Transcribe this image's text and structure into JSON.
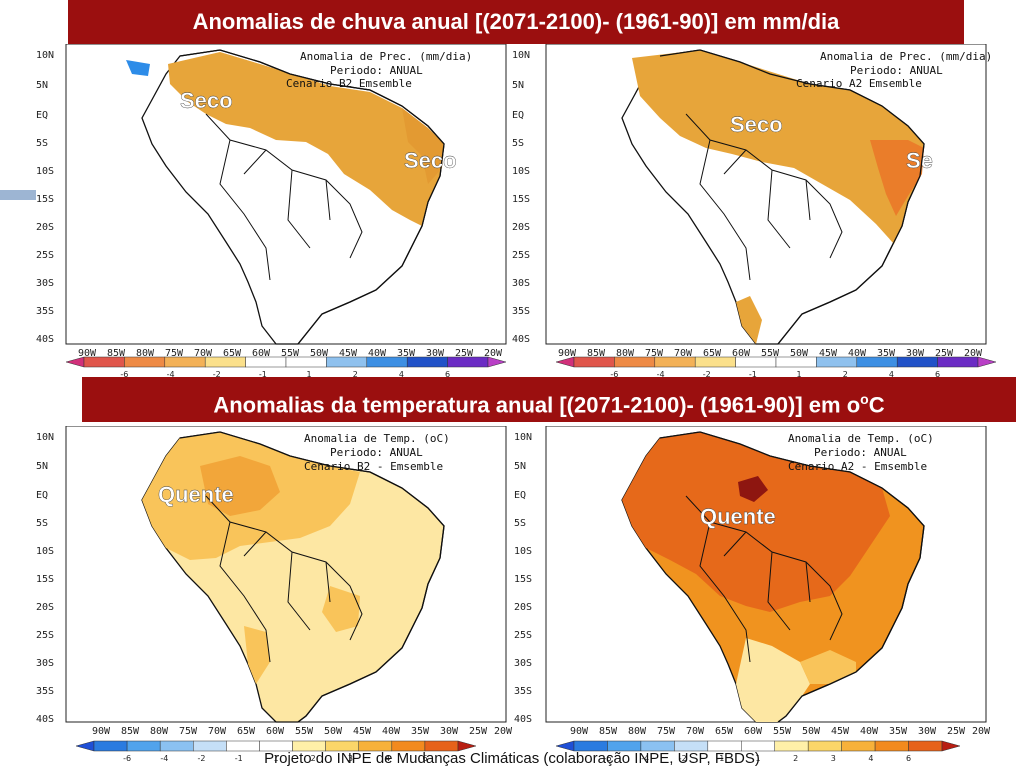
{
  "titles": {
    "precip": "Anomalias de chuva anual [(2071-2100)- (1961-90)] em mm/dia",
    "temp_main": "Anomalias da temperatura anual [(2071-2100)- (1961-90)] em o",
    "temp_unit": "C"
  },
  "axes": {
    "lat": [
      "10N",
      "5N",
      "EQ",
      "5S",
      "10S",
      "15S",
      "20S",
      "25S",
      "30S",
      "35S",
      "40S"
    ],
    "lon": [
      "90W",
      "85W",
      "80W",
      "75W",
      "70W",
      "65W",
      "60W",
      "55W",
      "50W",
      "45W",
      "40W",
      "35W",
      "30W",
      "25W",
      "20W"
    ]
  },
  "maps": {
    "precip_b2": {
      "header": [
        "Anomalia de Prec. (mm/dia)",
        "Periodo: ANUAL",
        "Cenario B2  Emsemble"
      ],
      "labels": [
        "Seco",
        "Seco"
      ]
    },
    "precip_a2": {
      "header": [
        "Anomalia de Prec. (mm/dia)",
        "Periodo: ANUAL",
        "Cenario A2  Emsemble"
      ],
      "labels": [
        "Seco",
        "Se"
      ]
    },
    "temp_b2": {
      "header": [
        "Anomalia de Temp. (oC)",
        "Periodo: ANUAL",
        "Cenario B2 - Emsemble"
      ],
      "labels": [
        "Quente"
      ]
    },
    "temp_a2": {
      "header": [
        "Anomalia de Temp. (oC)",
        "Periodo: ANUAL",
        "Cenario A2 - Emsemble"
      ],
      "labels": [
        "Quente"
      ]
    }
  },
  "colorbars": {
    "precip": {
      "ticks": [
        "-6",
        "-4",
        "-2",
        "-1",
        "1",
        "2",
        "4",
        "6"
      ],
      "colors": [
        "#d1307a",
        "#e0564b",
        "#ee8a45",
        "#f3b157",
        "#fbe08b",
        "#ffffff",
        "#ffffff",
        "#8fc1ee",
        "#3d8fe3",
        "#2152c8",
        "#6b2cc4",
        "#b93fc6"
      ]
    },
    "temp": {
      "ticks": [
        "-6",
        "-4",
        "-2",
        "-1",
        "1",
        "2",
        "3",
        "4",
        "6"
      ],
      "colors": [
        "#1f4fd6",
        "#2a7be0",
        "#51a3ec",
        "#8bc1f1",
        "#c5dff7",
        "#ffffff",
        "#ffffff",
        "#fff0a8",
        "#fbd669",
        "#f7b13a",
        "#f28a1e",
        "#e6621a",
        "#b81e12"
      ]
    }
  },
  "colors": {
    "banner": "#9b0f0f",
    "dry": "#e7a53a",
    "dry_strong": "#ea7d2a",
    "warm_light": "#fde7a3",
    "warm_mid": "#f9c45a",
    "warm_orange": "#f0931f",
    "warm_strong": "#e6691a",
    "warm_deep": "#8e1610",
    "wet": "#2d8ce8"
  },
  "footer": "Projeto do INPE de Mudanças Climáticas (colaboração INPE, USP, FBDS)"
}
